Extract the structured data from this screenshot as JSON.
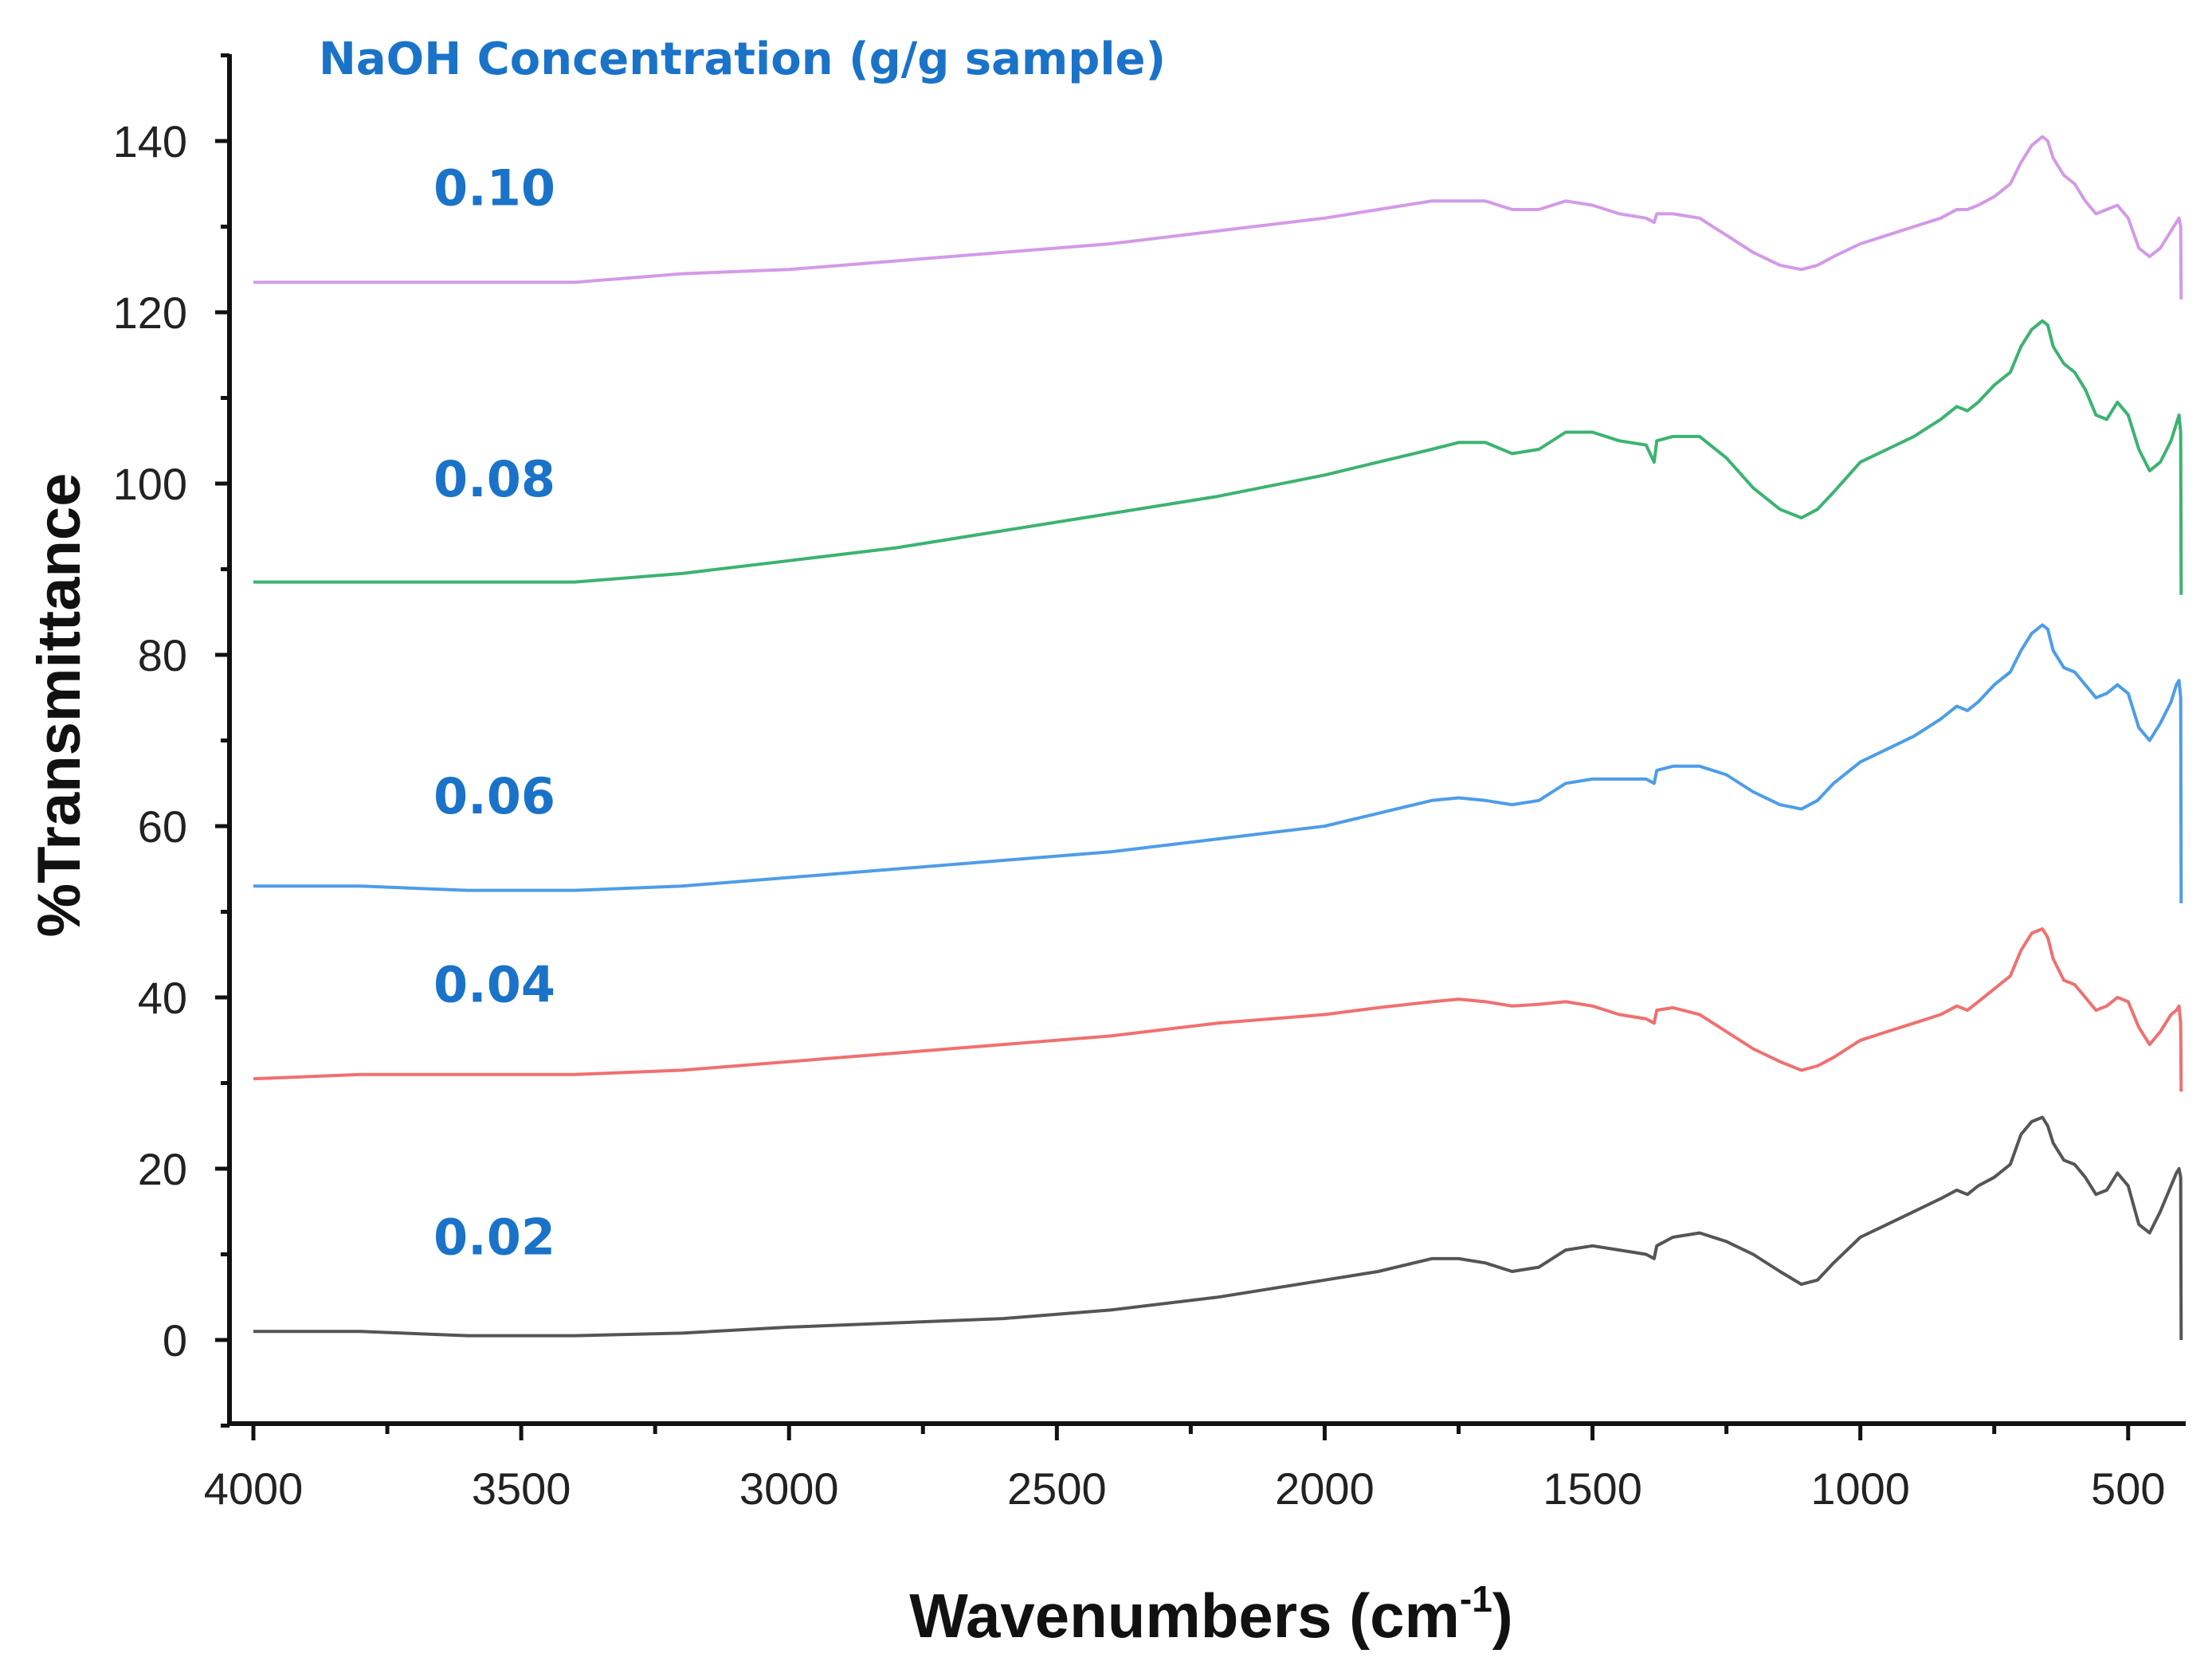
{
  "chart_data": {
    "type": "line",
    "title": "",
    "legend_title": "NaOH Concentration (g/g sample)",
    "xlabel": "Wavenumbers (cm",
    "xlabel_sup": "-1",
    "xlabel_close": ")",
    "ylabel": "%Transmittance",
    "xlim": [
      4000,
      400
    ],
    "ylim": [
      -10,
      150
    ],
    "x_reversed": true,
    "grid": false,
    "x_ticks": [
      4000,
      3500,
      3000,
      2500,
      2000,
      1500,
      1000,
      500
    ],
    "y_ticks": [
      0,
      20,
      40,
      60,
      80,
      100,
      120,
      140
    ],
    "x_tick_labels": [
      "4000",
      "3500",
      "3000",
      "2500",
      "2000",
      "1500",
      "1000",
      "500"
    ],
    "y_tick_labels": [
      "0",
      "20",
      "40",
      "60",
      "80",
      "100",
      "120",
      "140"
    ],
    "series": [
      {
        "name": "0.02",
        "color": "#555555",
        "label_pos": [
          3550,
          10
        ],
        "x": [
          4000,
          3800,
          3600,
          3400,
          3200,
          3000,
          2800,
          2600,
          2400,
          2200,
          2000,
          1900,
          1800,
          1750,
          1700,
          1650,
          1600,
          1550,
          1500,
          1450,
          1400,
          1385,
          1380,
          1350,
          1300,
          1250,
          1200,
          1150,
          1110,
          1080,
          1050,
          1000,
          950,
          900,
          850,
          820,
          800,
          780,
          750,
          720,
          700,
          680,
          660,
          650,
          640,
          620,
          600,
          580,
          560,
          540,
          520,
          500,
          480,
          460,
          440,
          420,
          410,
          405,
          402,
          401
        ],
        "y": [
          1,
          1,
          0.5,
          0.5,
          0.8,
          1.5,
          2,
          2.5,
          3.5,
          5,
          7,
          8,
          9.5,
          9.5,
          9,
          8,
          8.5,
          10.5,
          11,
          10.5,
          10,
          9.5,
          11,
          12,
          12.5,
          11.5,
          10,
          8,
          6.5,
          7,
          9,
          12,
          13.5,
          15,
          16.5,
          17.5,
          17,
          18,
          19,
          20.5,
          24,
          25.5,
          26,
          25,
          23,
          21,
          20.5,
          19,
          17,
          17.5,
          19.5,
          18,
          13.5,
          12.5,
          15,
          18,
          19.5,
          20,
          19,
          0
        ]
      },
      {
        "name": "0.04",
        "color": "#f07070",
        "label_pos": [
          3550,
          39.5
        ],
        "x": [
          4000,
          3800,
          3600,
          3400,
          3200,
          3000,
          2800,
          2600,
          2400,
          2200,
          2000,
          1900,
          1800,
          1750,
          1700,
          1650,
          1600,
          1550,
          1500,
          1450,
          1400,
          1385,
          1380,
          1350,
          1300,
          1250,
          1200,
          1150,
          1110,
          1080,
          1050,
          1000,
          950,
          900,
          850,
          820,
          800,
          780,
          750,
          720,
          700,
          680,
          660,
          650,
          640,
          620,
          600,
          580,
          560,
          540,
          520,
          500,
          480,
          460,
          440,
          420,
          410,
          405,
          402,
          401
        ],
        "y": [
          30.5,
          31,
          31,
          31,
          31.5,
          32.5,
          33.5,
          34.5,
          35.5,
          37,
          38,
          38.8,
          39.5,
          39.8,
          39.5,
          39,
          39.2,
          39.5,
          39,
          38,
          37.5,
          37,
          38.5,
          38.8,
          38,
          36,
          34,
          32.5,
          31.5,
          32,
          33,
          35,
          36,
          37,
          38,
          39,
          38.5,
          39.5,
          41,
          42.5,
          45.5,
          47.5,
          48,
          47,
          44.5,
          42,
          41.5,
          40,
          38.5,
          39,
          40,
          39.5,
          36.5,
          34.5,
          36,
          38,
          38.5,
          39,
          37,
          29
        ]
      },
      {
        "name": "0.06",
        "color": "#4d9de8",
        "label_pos": [
          3550,
          61.5
        ],
        "x": [
          4000,
          3800,
          3600,
          3400,
          3200,
          3000,
          2800,
          2600,
          2400,
          2200,
          2000,
          1900,
          1800,
          1750,
          1700,
          1650,
          1600,
          1550,
          1500,
          1450,
          1400,
          1385,
          1380,
          1350,
          1300,
          1250,
          1200,
          1150,
          1110,
          1080,
          1050,
          1000,
          950,
          900,
          850,
          820,
          800,
          780,
          750,
          720,
          700,
          680,
          660,
          650,
          640,
          620,
          600,
          580,
          560,
          540,
          520,
          500,
          480,
          460,
          440,
          420,
          410,
          405,
          402,
          401
        ],
        "y": [
          53,
          53,
          52.5,
          52.5,
          53,
          54,
          55,
          56,
          57,
          58.5,
          60,
          61.5,
          63,
          63.3,
          63,
          62.5,
          63,
          65,
          65.5,
          65.5,
          65.5,
          65,
          66.5,
          67,
          67,
          66,
          64,
          62.5,
          62,
          63,
          65,
          67.5,
          69,
          70.5,
          72.5,
          74,
          73.5,
          74.5,
          76.5,
          78,
          80.5,
          82.5,
          83.5,
          83,
          80.5,
          78.5,
          78,
          76.5,
          75,
          75.5,
          76.5,
          75.5,
          71.5,
          70,
          72,
          74.5,
          76.5,
          77,
          75,
          51
        ]
      },
      {
        "name": "0.08",
        "color": "#3cb371",
        "label_pos": [
          3550,
          98.5
        ],
        "x": [
          4000,
          3800,
          3600,
          3400,
          3200,
          3000,
          2800,
          2600,
          2400,
          2200,
          2000,
          1900,
          1800,
          1750,
          1700,
          1650,
          1600,
          1550,
          1500,
          1450,
          1400,
          1385,
          1380,
          1350,
          1300,
          1250,
          1200,
          1150,
          1110,
          1080,
          1050,
          1000,
          950,
          900,
          850,
          820,
          800,
          780,
          750,
          720,
          700,
          680,
          660,
          650,
          640,
          620,
          600,
          580,
          560,
          540,
          520,
          500,
          480,
          460,
          440,
          420,
          410,
          405,
          402,
          401
        ],
        "y": [
          88.5,
          88.5,
          88.5,
          88.5,
          89.5,
          91,
          92.5,
          94.5,
          96.5,
          98.5,
          101,
          102.5,
          104,
          104.8,
          104.8,
          103.5,
          104,
          106,
          106,
          105,
          104.5,
          102.5,
          105,
          105.5,
          105.5,
          103,
          99.5,
          97,
          96,
          97,
          99,
          102.5,
          104,
          105.5,
          107.5,
          109,
          108.5,
          109.5,
          111.5,
          113,
          116,
          118,
          119,
          118.5,
          116,
          114,
          113,
          111,
          108,
          107.5,
          109.5,
          108,
          104,
          101.5,
          102.5,
          105,
          107,
          108,
          106,
          87
        ]
      },
      {
        "name": "0.10",
        "color": "#d39ae8",
        "label_pos": [
          3550,
          132.5
        ],
        "x": [
          4000,
          3800,
          3600,
          3400,
          3200,
          3000,
          2800,
          2600,
          2400,
          2200,
          2000,
          1900,
          1800,
          1750,
          1700,
          1650,
          1600,
          1550,
          1500,
          1450,
          1400,
          1385,
          1380,
          1350,
          1300,
          1250,
          1200,
          1150,
          1110,
          1080,
          1050,
          1000,
          950,
          900,
          850,
          820,
          800,
          780,
          750,
          720,
          700,
          680,
          660,
          650,
          640,
          620,
          600,
          580,
          560,
          540,
          520,
          500,
          480,
          460,
          440,
          420,
          410,
          405,
          402,
          401
        ],
        "y": [
          123.5,
          123.5,
          123.5,
          123.5,
          124.5,
          125,
          126,
          127,
          128,
          129.5,
          131,
          132,
          133,
          133,
          133,
          132,
          132,
          133,
          132.5,
          131.5,
          131,
          130.5,
          131.5,
          131.5,
          131,
          129,
          127,
          125.5,
          125,
          125.5,
          126.5,
          128,
          129,
          130,
          131,
          132,
          132,
          132.5,
          133.5,
          135,
          137.5,
          139.5,
          140.5,
          140,
          138,
          136,
          135,
          133,
          131.5,
          132,
          132.5,
          131,
          127.5,
          126.5,
          127.5,
          129.5,
          130.5,
          131,
          130,
          121.5
        ]
      }
    ]
  }
}
